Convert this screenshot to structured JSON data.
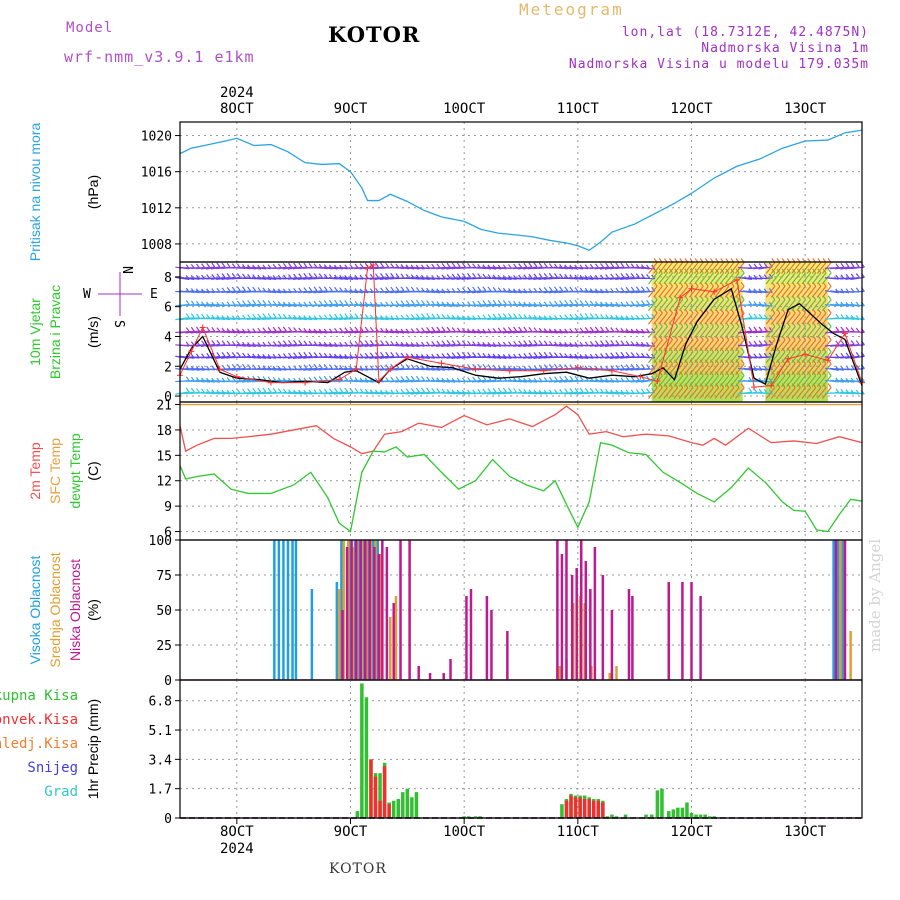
{
  "header": {
    "model_label": "Model",
    "model_name": "wrf-nmm_v3.9.1  e1km",
    "title": "KOTOR",
    "meteogram": "Meteogram",
    "lonlat": "lon,lat (18.7312E, 42.4875N)",
    "altitude": "Nadmorska Visina 1m",
    "model_altitude": "Nadmorska Visina u modelu 179.035m",
    "footer": "KOTOR",
    "watermark": "made by Angel",
    "colors": {
      "model": "#b050c8",
      "title": "#000000",
      "meteogram": "#e6b86a",
      "info": "#a030c8",
      "watermark": "#d8d8d8"
    }
  },
  "chart_data": [
    {
      "type": "line",
      "id": "pressure",
      "ylabel": "Pritisak na nivou mora",
      "unit": "(hPa)",
      "ylim": [
        1006,
        1021.5
      ],
      "yticks": [
        1008,
        1012,
        1016,
        1020
      ],
      "x_range": [
        7.5,
        13.5
      ],
      "x_tick_labels": [
        "8OCT",
        "9OCT",
        "10OCT",
        "11OCT",
        "12OCT",
        "13OCT"
      ],
      "x_tick_values": [
        8,
        9,
        10,
        11,
        12,
        13
      ],
      "top_year": "2024",
      "bottom_year": "2024",
      "grid": true,
      "series": [
        {
          "color": "#2aa4e0",
          "x": [
            7.5,
            7.6,
            7.75,
            7.9,
            8.0,
            8.15,
            8.3,
            8.45,
            8.6,
            8.75,
            8.9,
            9.0,
            9.1,
            9.15,
            9.25,
            9.35,
            9.5,
            9.65,
            9.8,
            10.0,
            10.15,
            10.3,
            10.45,
            10.6,
            10.75,
            10.9,
            11.0,
            11.1,
            11.2,
            11.3,
            11.5,
            11.7,
            11.85,
            12.0,
            12.2,
            12.4,
            12.6,
            12.8,
            13.0,
            13.2,
            13.35,
            13.5
          ],
          "values": [
            1018,
            1018.6,
            1019,
            1019.4,
            1019.7,
            1018.9,
            1019,
            1018.2,
            1017,
            1016.8,
            1016.9,
            1016,
            1014.2,
            1012.8,
            1012.8,
            1013.5,
            1012.7,
            1011.7,
            1011,
            1010.5,
            1009.6,
            1009.2,
            1009,
            1008.8,
            1008.4,
            1008.1,
            1007.8,
            1007.3,
            1008.2,
            1009.3,
            1010.2,
            1011.5,
            1012.5,
            1013.6,
            1015.3,
            1016.6,
            1017.4,
            1018.6,
            1019.4,
            1019.5,
            1020.3,
            1020.6
          ]
        }
      ]
    },
    {
      "type": "line",
      "id": "wind",
      "ylabel": [
        "10m Vjetar",
        "Brzina i Pravac"
      ],
      "unit": "(m/s)",
      "compass": {
        "n": "N",
        "s": "S",
        "w": "W",
        "e": "E"
      },
      "ylim": [
        -0.4,
        9
      ],
      "yticks": [
        0,
        2,
        4,
        6,
        8
      ],
      "x_range": [
        7.5,
        13.5
      ],
      "grid": true,
      "barb_levels": [
        0.2,
        1.0,
        1.8,
        2.6,
        3.4,
        4.3,
        5.2,
        6.1,
        7.0,
        7.9,
        8.6
      ],
      "series": [
        {
          "name": "",
          "color": "#000000",
          "x": [
            7.5,
            7.6,
            7.7,
            7.85,
            8.0,
            8.2,
            8.4,
            8.6,
            8.8,
            8.95,
            9.05,
            9.15,
            9.25,
            9.35,
            9.5,
            9.7,
            9.9,
            10.1,
            10.3,
            10.5,
            10.7,
            10.9,
            11.1,
            11.3,
            11.5,
            11.65,
            11.75,
            11.85,
            11.95,
            12.05,
            12.2,
            12.35,
            12.45,
            12.55,
            12.65,
            12.75,
            12.85,
            12.95,
            13.05,
            13.15,
            13.25,
            13.35,
            13.5
          ],
          "values": [
            1.8,
            3.2,
            4,
            1.6,
            1.2,
            1.1,
            0.9,
            1,
            0.9,
            1.6,
            1.7,
            1.3,
            0.9,
            1.8,
            2.5,
            2,
            1.9,
            1.4,
            1.2,
            1.3,
            1.5,
            1.6,
            1.2,
            1.4,
            1.3,
            1.5,
            1.9,
            1.1,
            3.5,
            5,
            6.5,
            7.2,
            4.5,
            1.2,
            0.8,
            3.5,
            5.8,
            6.2,
            5.5,
            4.8,
            4.2,
            3.8,
            0.7
          ]
        },
        {
          "name": "",
          "color": "#ff3030",
          "x": [
            7.5,
            7.6,
            7.7,
            7.85,
            8.0,
            8.3,
            8.6,
            8.9,
            9.05,
            9.15,
            9.2,
            9.25,
            9.35,
            9.5,
            9.8,
            10.1,
            10.4,
            10.7,
            11.0,
            11.3,
            11.55,
            11.7,
            11.9,
            12.0,
            12.2,
            12.4,
            12.55,
            12.7,
            12.85,
            13.0,
            13.2,
            13.35,
            13.5
          ],
          "values": [
            1.4,
            3.0,
            4.6,
            1.8,
            1.3,
            0.9,
            0.9,
            1.1,
            1.8,
            8.6,
            8.8,
            1.0,
            1.8,
            2.6,
            2.2,
            1.8,
            1.7,
            1.7,
            1.9,
            1.7,
            1.3,
            1.0,
            6.6,
            7.2,
            7.0,
            7.8,
            0.6,
            0.7,
            2.5,
            2.8,
            2.4,
            4.2,
            0.9
          ]
        }
      ]
    },
    {
      "type": "line",
      "id": "temperature",
      "ylabel": [
        "2m Temp",
        "SFC Temp",
        "dewpt Temp"
      ],
      "unit": "(C)",
      "ylim": [
        5,
        21.3
      ],
      "yticks": [
        6,
        9,
        12,
        15,
        18,
        21
      ],
      "x_range": [
        7.5,
        13.5
      ],
      "grid": true,
      "series": [
        {
          "name": "2m Temp",
          "color": "#f05050",
          "x": [
            7.5,
            7.55,
            7.65,
            7.8,
            7.95,
            8.1,
            8.3,
            8.5,
            8.7,
            8.85,
            9.0,
            9.1,
            9.2,
            9.3,
            9.45,
            9.6,
            9.8,
            10.0,
            10.2,
            10.4,
            10.6,
            10.8,
            10.9,
            11.0,
            11.1,
            11.25,
            11.4,
            11.6,
            11.8,
            12.0,
            12.1,
            12.2,
            12.3,
            12.5,
            12.7,
            12.9,
            13.1,
            13.3,
            13.5
          ],
          "values": [
            18.5,
            15.5,
            16.2,
            17,
            17,
            17.2,
            17.5,
            18,
            18.5,
            17,
            16,
            15.2,
            15.5,
            17.5,
            17.8,
            18.8,
            18.3,
            19.7,
            18.6,
            19.3,
            18.4,
            19.8,
            20.8,
            19.8,
            17.5,
            17.8,
            17.2,
            17.5,
            17.3,
            16.5,
            16.2,
            17,
            16.2,
            18.2,
            16.5,
            16.7,
            16.4,
            17.2,
            16.5
          ]
        },
        {
          "name": "SFC Temp",
          "color": "#e6a040",
          "x": [
            7.5,
            13.5
          ],
          "values": [
            21,
            21
          ]
        },
        {
          "name": "dewpt Temp",
          "color": "#30c830",
          "x": [
            7.5,
            7.55,
            7.65,
            7.8,
            7.95,
            8.1,
            8.3,
            8.5,
            8.65,
            8.8,
            8.9,
            9.0,
            9.1,
            9.2,
            9.3,
            9.4,
            9.5,
            9.65,
            9.8,
            9.95,
            10.1,
            10.25,
            10.4,
            10.55,
            10.7,
            10.8,
            10.9,
            11.0,
            11.1,
            11.2,
            11.3,
            11.45,
            11.6,
            11.75,
            11.9,
            12.05,
            12.2,
            12.35,
            12.5,
            12.65,
            12.8,
            12.9,
            13.0,
            13.1,
            13.2,
            13.3,
            13.4,
            13.5
          ],
          "values": [
            13.8,
            12.2,
            12.5,
            12.8,
            11,
            10.5,
            10.5,
            11.5,
            13,
            10,
            7,
            6,
            13,
            15.5,
            15.4,
            16,
            14.8,
            15.1,
            13,
            11,
            12,
            14.5,
            12.5,
            11.5,
            10.8,
            12,
            9.2,
            6.5,
            9.5,
            16.5,
            16.2,
            15.3,
            15.1,
            13,
            11.8,
            10.5,
            9.5,
            11.2,
            13.5,
            11.8,
            9.5,
            8.5,
            8.4,
            6.2,
            6,
            8,
            9.8,
            9.6
          ]
        }
      ]
    },
    {
      "type": "bar",
      "id": "cloud",
      "ylabel": [
        "Visoka Oblacnost",
        "Srednja Oblacnost",
        "Niska Oblacnost"
      ],
      "unit": "(%)",
      "ylim": [
        0,
        100
      ],
      "yticks": [
        0,
        25,
        50,
        75,
        100
      ],
      "x_range": [
        7.5,
        13.5
      ],
      "grid": true,
      "series": [
        {
          "name": "Visoka Oblacnost",
          "color": "#20a0e0",
          "x": [
            8.33,
            8.37,
            8.41,
            8.45,
            8.49,
            8.52,
            8.66,
            8.88,
            8.92,
            9.0,
            9.04,
            9.08,
            9.12,
            9.16,
            9.2,
            9.24,
            13.25,
            13.29,
            13.33
          ],
          "values": [
            100,
            100,
            100,
            100,
            100,
            100,
            65,
            70,
            100,
            100,
            100,
            100,
            100,
            100,
            100,
            100,
            100,
            100,
            100
          ]
        },
        {
          "name": "Srednja Oblacnost",
          "color": "#e0a030",
          "x": [
            8.9,
            8.94,
            8.98,
            9.02,
            9.06,
            9.1,
            9.14,
            9.18,
            9.22,
            9.26,
            9.35,
            9.4,
            10.84,
            10.9,
            10.96,
            11.02,
            11.06,
            11.12,
            11.28,
            11.34,
            13.27,
            13.31,
            13.35,
            13.4
          ],
          "values": [
            65,
            100,
            100,
            95,
            100,
            100,
            100,
            100,
            100,
            90,
            45,
            60,
            10,
            15,
            55,
            60,
            55,
            10,
            5,
            10,
            60,
            100,
            100,
            35
          ]
        },
        {
          "name": "Niska Oblacnost",
          "color": "#c01890",
          "x": [
            8.93,
            8.97,
            9.01,
            9.05,
            9.09,
            9.13,
            9.17,
            9.21,
            9.25,
            9.28,
            9.32,
            9.38,
            9.44,
            9.52,
            9.6,
            9.7,
            9.82,
            9.88,
            10.02,
            10.06,
            10.2,
            10.24,
            10.38,
            10.82,
            10.86,
            10.9,
            10.95,
            10.99,
            11.03,
            11.07,
            11.11,
            11.15,
            11.22,
            11.3,
            11.45,
            11.48,
            11.8,
            11.92,
            12.0,
            12.08,
            13.27,
            13.35
          ],
          "values": [
            50,
            95,
            100,
            100,
            100,
            100,
            100,
            95,
            90,
            100,
            95,
            55,
            100,
            100,
            10,
            5,
            5,
            15,
            60,
            65,
            60,
            50,
            35,
            100,
            90,
            100,
            75,
            80,
            100,
            85,
            65,
            95,
            75,
            50,
            65,
            60,
            70,
            70,
            70,
            60,
            100,
            100
          ]
        }
      ]
    },
    {
      "type": "bar",
      "id": "precip",
      "ylabel": [
        "Ukupna Kisa",
        "Konvek.Kisa",
        "Zaledj.Kisa",
        "Snijeg",
        "Grad"
      ],
      "unit": "1hr Precip (mm)",
      "ylim": [
        0,
        8
      ],
      "yticks": [
        0,
        1.7,
        3.4,
        5.1,
        6.8
      ],
      "x_range": [
        7.5,
        13.5
      ],
      "grid": true,
      "series": [
        {
          "name": "Ukupna Kisa",
          "color": "#30c030",
          "x": [
            9.06,
            9.1,
            9.14,
            9.18,
            9.22,
            9.26,
            9.3,
            9.34,
            9.38,
            9.42,
            9.46,
            9.5,
            9.54,
            9.58,
            10.0,
            10.04,
            10.1,
            10.14,
            10.86,
            10.9,
            10.94,
            10.98,
            11.02,
            11.06,
            11.1,
            11.14,
            11.18,
            11.22,
            11.26,
            11.3,
            11.34,
            11.42,
            11.6,
            11.65,
            11.7,
            11.74,
            11.8,
            11.84,
            11.88,
            11.92,
            11.96,
            12.0,
            12.04,
            12.08,
            12.12,
            12.16,
            12.2
          ],
          "values": [
            0.4,
            7.8,
            7.0,
            3.4,
            2.6,
            2.6,
            3.2,
            0.9,
            1.0,
            1.1,
            1.5,
            1.7,
            1.2,
            1.5,
            0.1,
            0.1,
            0.1,
            0.1,
            0.8,
            1.1,
            1.4,
            1.3,
            1.3,
            1.3,
            1.2,
            1.1,
            1.1,
            1.0,
            0.1,
            0.2,
            0.1,
            0.2,
            0.2,
            0.2,
            1.6,
            1.7,
            0.4,
            0.5,
            0.6,
            0.6,
            0.9,
            0.3,
            0.2,
            0.2,
            0.2,
            0.1,
            0.1
          ]
        },
        {
          "name": "Konvek.Kisa",
          "color": "#f03030",
          "x": [
            9.18,
            9.22,
            9.26,
            9.3,
            9.34,
            10.9,
            10.94,
            10.98,
            11.02,
            11.06,
            11.1,
            11.14,
            11.18,
            11.22
          ],
          "values": [
            3.4,
            2.4,
            1.0,
            3.0,
            0.8,
            1.0,
            1.3,
            1.2,
            1.2,
            1.1,
            1.1,
            1.0,
            1.0,
            0.9
          ]
        },
        {
          "name": "Zaledj.Kisa",
          "color": "#f08030",
          "x": [],
          "values": []
        },
        {
          "name": "Snijeg",
          "color": "#4040e0",
          "x": [],
          "values": []
        },
        {
          "name": "Grad",
          "color": "#30c8c8",
          "x": [],
          "values": []
        }
      ]
    }
  ]
}
